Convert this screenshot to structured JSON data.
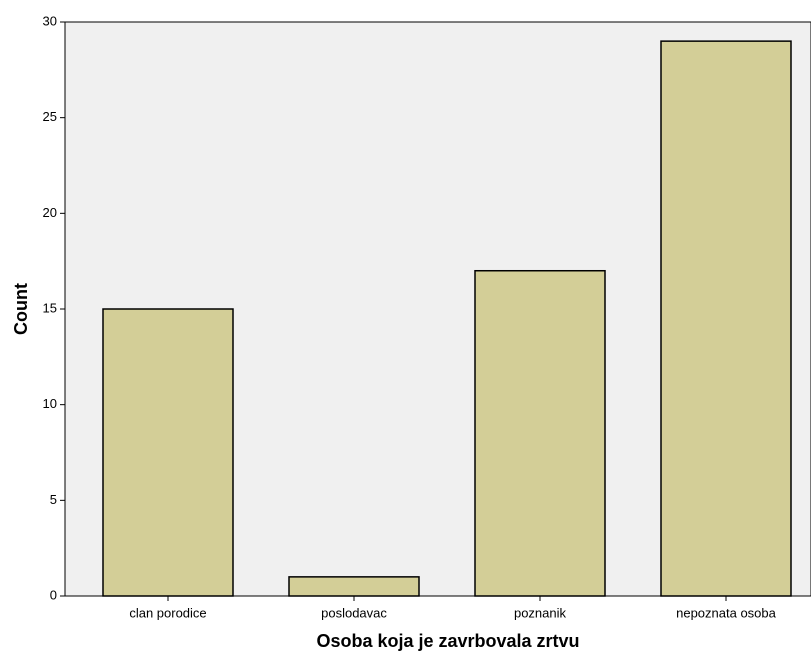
{
  "chart_data": {
    "type": "bar",
    "categories": [
      "clan porodice",
      "poslodavac",
      "poznanik",
      "nepoznata osoba"
    ],
    "values": [
      15,
      1,
      17,
      29
    ],
    "color": "#d3ce97",
    "x_label": "Osoba koja je zavrbovala zrtvu",
    "y_label": "Count",
    "ylim": [
      0,
      30
    ],
    "yticks": [
      0,
      5,
      10,
      15,
      20,
      25,
      30
    ],
    "grid": false
  }
}
